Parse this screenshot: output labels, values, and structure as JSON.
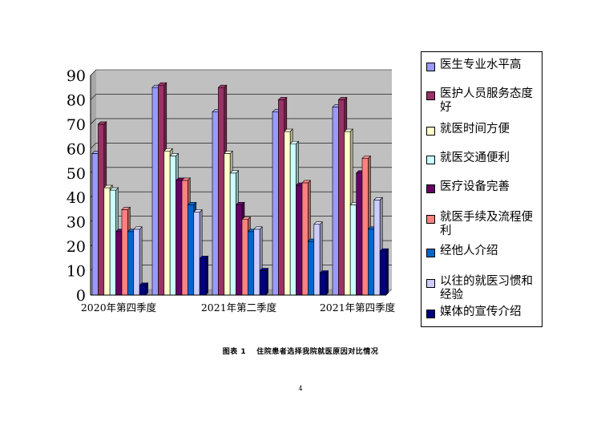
{
  "chart_data": {
    "type": "bar",
    "bar_style": "3d",
    "categories": [
      "2020年第四季度",
      "2021年第二季度",
      "2021年第四季度"
    ],
    "ylim": [
      0,
      90
    ],
    "yticks": [
      "0",
      "10",
      "20",
      "30",
      "40",
      "50",
      "60",
      "70",
      "80",
      "90"
    ],
    "grid": true,
    "legend_position": "right",
    "series": [
      {
        "name": "医生专业水平高",
        "color": "#9999ff",
        "values": [
          58,
          85,
          75
        ]
      },
      {
        "name": "医护人员服务态度好",
        "color": "#993366",
        "values": [
          70,
          86,
          85
        ]
      },
      {
        "name": "就医时间方便",
        "color": "#ffffcc",
        "values": [
          44,
          59,
          58
        ]
      },
      {
        "name": "就医交通便利",
        "color": "#ccffff",
        "values": [
          43,
          57,
          50
        ]
      },
      {
        "name": "医疗设备完善",
        "color": "#660066",
        "values": [
          26,
          47,
          37
        ]
      },
      {
        "name": "就医手续及流程便利",
        "color": "#ff8080",
        "values": [
          35,
          47,
          31
        ]
      },
      {
        "name": "经他人介绍",
        "color": "#0066cc",
        "values": [
          26,
          37,
          26
        ]
      },
      {
        "name": "以往的就医习惯和经验",
        "color": "#ccccff",
        "values": [
          27,
          34,
          27
        ]
      },
      {
        "name": "媒体的宣传介绍",
        "color": "#000080",
        "values": [
          4,
          15,
          10
        ]
      }
    ],
    "extra_groups": [
      {
        "values": [
          75,
          80,
          67,
          62,
          45,
          46,
          22,
          29,
          9
        ]
      },
      {
        "values": [
          77,
          80,
          67,
          37,
          50,
          56,
          27,
          39,
          18
        ]
      }
    ],
    "category_labels_shown": [
      "2020年第四季度",
      "2021年第二季度",
      "2021年第四季度"
    ]
  },
  "caption": "图表 1　 住院患者选择我院就医原因对比情况",
  "page_number": "4"
}
